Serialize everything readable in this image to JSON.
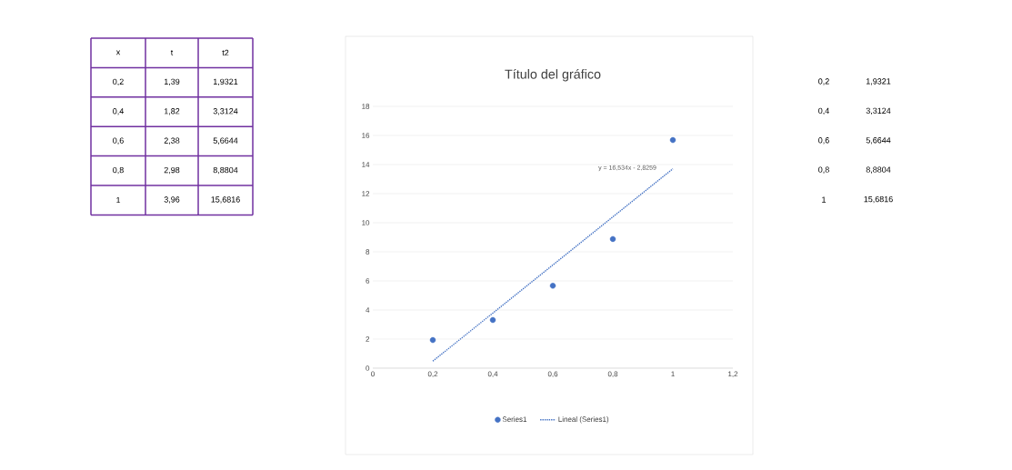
{
  "chart_data": {
    "type": "scatter",
    "title": "Título del gráfico",
    "xlim": [
      0,
      1.2
    ],
    "ylim": [
      0,
      18
    ],
    "xticks": [
      0,
      {
        "value": 0.2,
        "label": "0,2"
      },
      {
        "value": 0.4,
        "label": "0,4"
      },
      {
        "value": 0.6,
        "label": "0,6"
      },
      {
        "value": 0.8,
        "label": "0,8"
      },
      1,
      {
        "value": 1.2,
        "label": "1,2"
      }
    ],
    "yticks": [
      0,
      2,
      4,
      6,
      8,
      10,
      12,
      14,
      16,
      18
    ],
    "grid": "y",
    "legend": "bottom",
    "series": [
      {
        "name": "Series1",
        "marker": "circle",
        "color": "#4472c4",
        "x": [
          0.2,
          0.4,
          0.6,
          0.8,
          1
        ],
        "values": [
          1.9321,
          3.3124,
          5.6644,
          8.8804,
          15.6816
        ]
      },
      {
        "name": "Lineal (Series1)",
        "type": "line",
        "marker": "none",
        "line_style": "dotted",
        "color": "#4472c4",
        "x": [
          0.2,
          1
        ],
        "values": [
          0.4809,
          13.7081
        ]
      }
    ],
    "annotations": [
      "y = 16,534x - 2,8259",
      "x",
      "t",
      "t2",
      "0,2",
      "1,39",
      "1,9321",
      "0,4",
      "1,82",
      "3,3124",
      "0,6",
      "2,38",
      "5,6644",
      "0,8",
      "2,98",
      "8,8804",
      "1",
      "3,96",
      "15,6816",
      "0,2",
      "1,9321",
      "0,4",
      "3,3124",
      "0,6",
      "5,6644",
      "0,8",
      "8,8804",
      "1",
      "15,6816"
    ]
  }
}
